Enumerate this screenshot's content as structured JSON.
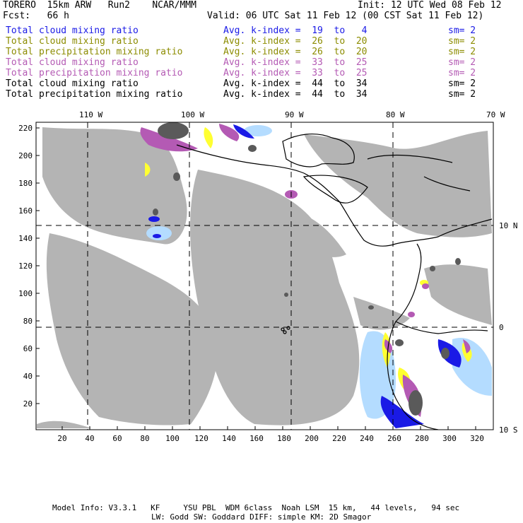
{
  "header": {
    "model": "TORERO  15km ARW   Run2    NCAR/MMM",
    "init": "Init: 12 UTC Wed 08 Feb 12",
    "fcst": "Fcst:   66 h",
    "valid": "Valid: 06 UTC Sat 11 Feb 12 (00 CST Sat 11 Feb 12)"
  },
  "legend": [
    {
      "field": "Total cloud mixing ratio",
      "index": "Avg. k-index =  19  to   4",
      "sm": "sm= 2",
      "color": "#1a1ae6"
    },
    {
      "field": "Total cloud mixing ratio",
      "index": "Avg. k-index =  26  to  20",
      "sm": "sm= 2",
      "color": "#8c8c00"
    },
    {
      "field": "Total precipitation mixing ratio",
      "index": "Avg. k-index =  26  to  20",
      "sm": "sm= 2",
      "color": "#8c8c00"
    },
    {
      "field": "Total cloud mixing ratio",
      "index": "Avg. k-index =  33  to  25",
      "sm": "sm= 2",
      "color": "#b45ab4"
    },
    {
      "field": "Total precipitation mixing ratio",
      "index": "Avg. k-index =  33  to  25",
      "sm": "sm= 2",
      "color": "#b45ab4"
    },
    {
      "field": "Total cloud mixing ratio",
      "index": "Avg. k-index =  44  to  34",
      "sm": "sm= 2",
      "color": "#000000"
    },
    {
      "field": "Total precipitation mixing ratio",
      "index": "Avg. k-index =  44  to  34",
      "sm": "sm= 2",
      "color": "#000000"
    }
  ],
  "map": {
    "top_lon_labels": [
      "110 W",
      "100 W",
      "90 W",
      "80 W",
      "70 W"
    ],
    "right_lat_labels": [
      "10 N",
      "0",
      "10 S"
    ],
    "left_ticks": [
      "220",
      "200",
      "180",
      "160",
      "140",
      "120",
      "100",
      "80",
      "60",
      "40",
      "20"
    ],
    "bottom_ticks": [
      "20",
      "40",
      "60",
      "80",
      "100",
      "120",
      "140",
      "160",
      "180",
      "200",
      "220",
      "240",
      "260",
      "280",
      "300",
      "320"
    ],
    "colors": {
      "cloud_gray": "#b4b4b4",
      "dark_gray": "#5a5a5a",
      "blue": "#1a1ae6",
      "light_blue": "#b4dcff",
      "yellow": "#ffff32",
      "purple": "#b45ab4"
    }
  },
  "footer": {
    "line1": "Model Info: V3.3.1   KF     YSU PBL  WDM 6class  Noah LSM  15 km,   44 levels,   94 sec",
    "line2": "LW: Godd SW: Goddard DIFF: simple KM: 2D Smagor"
  }
}
